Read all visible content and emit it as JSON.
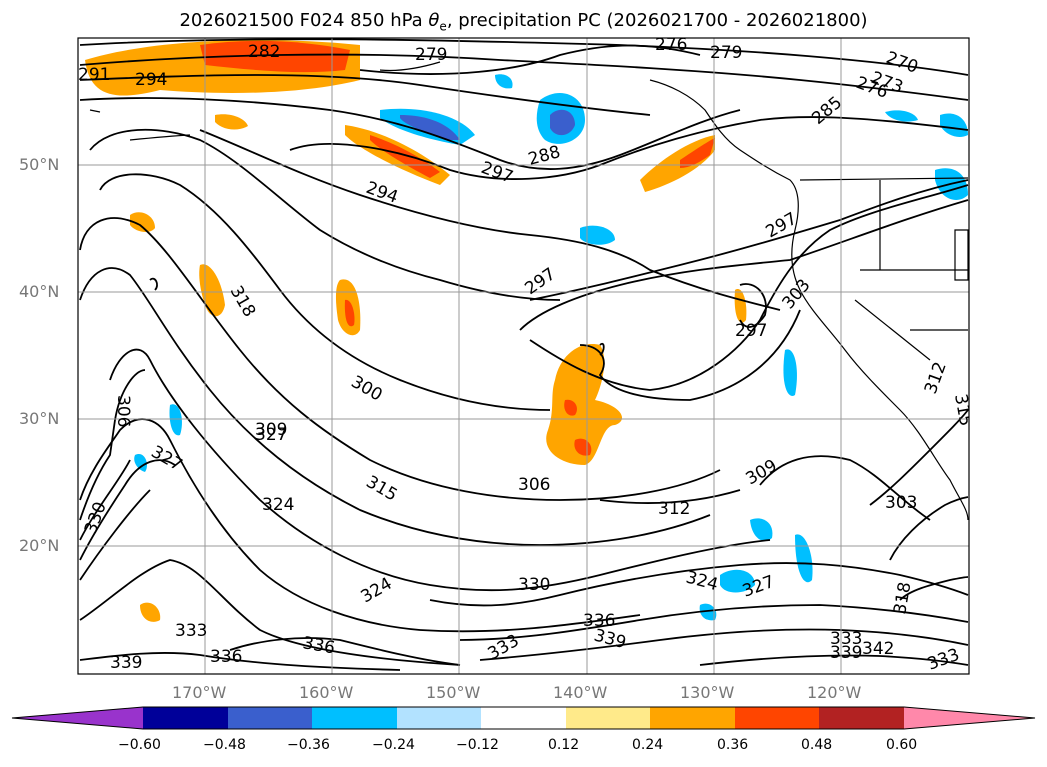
{
  "title": {
    "prefix": "2026021500 F024 850 hPa ",
    "theta": "θ",
    "sub": "e",
    "suffix": ", precipitation PC (2026021700 - 2026021800)"
  },
  "axes": {
    "lat_labels": [
      "50°N",
      "40°N",
      "30°N",
      "20°N"
    ],
    "lon_labels": [
      "170°W",
      "160°W",
      "150°W",
      "140°W",
      "130°W",
      "120°W"
    ]
  },
  "contour_labels": [
    "282",
    "279",
    "276",
    "279",
    "270",
    "273",
    "276",
    "291",
    "294",
    "285",
    "288",
    "297",
    "294",
    "297",
    "297",
    "318",
    "300",
    "309",
    "306",
    "327",
    "327",
    "315",
    "324",
    "306",
    "312",
    "309",
    "303",
    "330",
    "324",
    "330",
    "327",
    "324",
    "318",
    "333",
    "336",
    "336",
    "339",
    "333",
    "339",
    "333",
    "336",
    "339",
    "342",
    "333",
    "312",
    "315",
    "297",
    "303"
  ],
  "colorbar": {
    "ticks": [
      "−0.60",
      "−0.48",
      "−0.36",
      "−0.24",
      "−0.12",
      "0.12",
      "0.24",
      "0.36",
      "0.48",
      "0.60"
    ],
    "colors": [
      "#9933cc",
      "#000099",
      "#3a5fcd",
      "#00bfff",
      "#b2e2ff",
      "#ffffff",
      "#ffea8a",
      "#ffa500",
      "#ff4500",
      "#b22222",
      "#ff88aa"
    ]
  }
}
